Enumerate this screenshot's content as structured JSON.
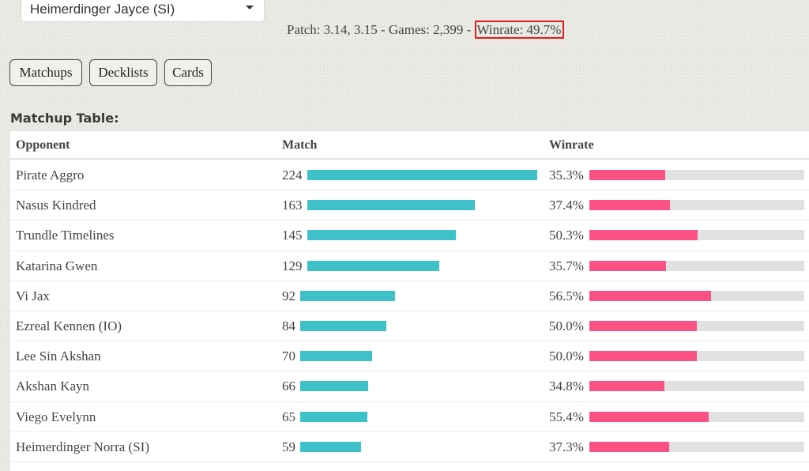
{
  "deck_selector": {
    "value": "Heimerdinger Jayce (SI)"
  },
  "summary": {
    "prefix": "Patch: 3.14, 3.15 - Games: 2,399 - ",
    "winrate": "Winrate: 49.7%"
  },
  "tabs": [
    {
      "label": "Matchups"
    },
    {
      "label": "Decklists"
    },
    {
      "label": "Cards"
    }
  ],
  "table": {
    "heading": "Matchup Table:",
    "columns": [
      "Opponent",
      "Match",
      "Winrate"
    ],
    "rows": [
      {
        "opponent": "Pirate Aggro",
        "matches": 224,
        "matches_label": "224",
        "winrate": 35.3,
        "winrate_label": "35.3%"
      },
      {
        "opponent": "Nasus Kindred",
        "matches": 163,
        "matches_label": "163",
        "winrate": 37.4,
        "winrate_label": "37.4%"
      },
      {
        "opponent": "Trundle Timelines",
        "matches": 145,
        "matches_label": "145",
        "winrate": 50.3,
        "winrate_label": "50.3%"
      },
      {
        "opponent": "Katarina Gwen",
        "matches": 129,
        "matches_label": "129",
        "winrate": 35.7,
        "winrate_label": "35.7%"
      },
      {
        "opponent": "Vi Jax",
        "matches": 92,
        "matches_label": "92",
        "winrate": 56.5,
        "winrate_label": "56.5%"
      },
      {
        "opponent": "Ezreal Kennen (IO)",
        "matches": 84,
        "matches_label": "84",
        "winrate": 50.0,
        "winrate_label": "50.0%"
      },
      {
        "opponent": "Lee Sin Akshan",
        "matches": 70,
        "matches_label": "70",
        "winrate": 50.0,
        "winrate_label": "50.0%"
      },
      {
        "opponent": "Akshan Kayn",
        "matches": 66,
        "matches_label": "66",
        "winrate": 34.8,
        "winrate_label": "34.8%"
      },
      {
        "opponent": "Viego Evelynn",
        "matches": 65,
        "matches_label": "65",
        "winrate": 55.4,
        "winrate_label": "55.4%"
      },
      {
        "opponent": "Heimerdinger Norra (SI)",
        "matches": 59,
        "matches_label": "59",
        "winrate": 37.3,
        "winrate_label": "37.3%"
      }
    ]
  },
  "colors": {
    "match_bar": "#3fc1c9",
    "winrate_bar": "#fc5185",
    "winrate_track": "#e1e1e1",
    "highlight_border": "#e31b1b"
  }
}
